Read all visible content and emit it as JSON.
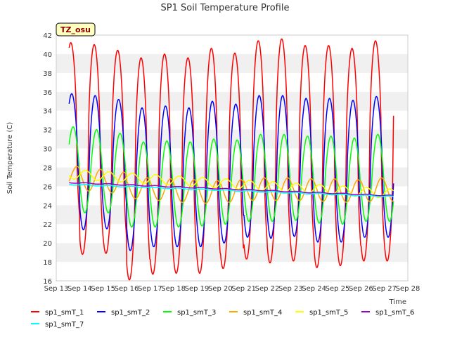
{
  "chart_data": {
    "type": "line",
    "title": "SP1 Soil Temperature Profile",
    "xlabel": "Time",
    "ylabel": "Soil Temperature (C)",
    "badge": "TZ_osu",
    "xlim": [
      13,
      28
    ],
    "ylim": [
      16,
      42
    ],
    "x_ticks": [
      13,
      14,
      15,
      16,
      17,
      18,
      19,
      20,
      21,
      22,
      23,
      24,
      25,
      26,
      27,
      28
    ],
    "x_tick_labels": [
      "Sep 13",
      "Sep 14",
      "Sep 15",
      "Sep 16",
      "Sep 17",
      "Sep 18",
      "Sep 19",
      "Sep 20",
      "Sep 21",
      "Sep 22",
      "Sep 23",
      "Sep 24",
      "Sep 25",
      "Sep 26",
      "Sep 27",
      "Sep 28"
    ],
    "y_ticks": [
      16,
      18,
      20,
      22,
      24,
      26,
      28,
      30,
      32,
      34,
      36,
      38,
      40,
      42
    ],
    "y_tick_labels": [
      "16",
      "18",
      "20",
      "22",
      "24",
      "26",
      "28",
      "30",
      "32",
      "34",
      "36",
      "38",
      "40",
      "42"
    ],
    "grid": "horizontal bands",
    "legend_position": "bottom",
    "day_extrema": {
      "sp1_smT_1": {
        "max": [
          41.2,
          41.0,
          40.4,
          39.6,
          40.0,
          39.6,
          40.6,
          40.1,
          41.4,
          41.6,
          40.9,
          40.9,
          40.6,
          41.4
        ],
        "min": [
          21.2,
          18.8,
          18.9,
          16.1,
          16.7,
          16.8,
          16.8,
          17.3,
          18.3,
          17.9,
          18.1,
          17.4,
          17.6,
          18.1
        ]
      },
      "sp1_smT_2": {
        "max": [
          35.8,
          35.6,
          35.2,
          34.3,
          34.5,
          34.3,
          35.0,
          34.7,
          35.6,
          35.6,
          35.3,
          35.3,
          35.1,
          35.5
        ],
        "min": [
          23.0,
          21.4,
          21.5,
          19.2,
          19.6,
          19.6,
          19.6,
          20.0,
          20.6,
          20.5,
          20.7,
          20.1,
          20.1,
          20.6
        ]
      },
      "sp1_smT_3": {
        "max": [
          32.3,
          32.0,
          31.6,
          30.7,
          30.8,
          30.7,
          31.0,
          30.9,
          31.5,
          31.5,
          31.3,
          31.3,
          31.1,
          31.5
        ],
        "min": [
          24.2,
          23.2,
          23.2,
          21.7,
          21.7,
          21.7,
          21.8,
          22.0,
          22.3,
          22.3,
          22.4,
          22.1,
          22.0,
          22.3
        ]
      },
      "sp1_smT_4": {
        "max": [
          28.1,
          27.8,
          27.5,
          26.9,
          26.8,
          26.7,
          26.6,
          26.7,
          26.9,
          26.9,
          26.8,
          26.8,
          26.7,
          26.9
        ],
        "min": [
          26.0,
          25.5,
          25.3,
          24.7,
          24.5,
          24.3,
          24.2,
          24.3,
          24.5,
          24.5,
          24.5,
          24.4,
          24.3,
          24.4
        ]
      },
      "sp1_smT_5": {
        "start": 27.3,
        "end": 25.2,
        "amplitude": 0.5
      },
      "sp1_smT_6": {
        "start": 26.4,
        "end": 25.0,
        "amplitude": 0.05
      },
      "sp1_smT_7": {
        "start": 26.2,
        "end": 24.9,
        "amplitude": 0.05
      }
    },
    "series": [
      {
        "name": "sp1_smT_1",
        "color": "#ff0000"
      },
      {
        "name": "sp1_smT_2",
        "color": "#0000ff"
      },
      {
        "name": "sp1_smT_3",
        "color": "#00ff00"
      },
      {
        "name": "sp1_smT_4",
        "color": "#ffa500"
      },
      {
        "name": "sp1_smT_5",
        "color": "#ffff00"
      },
      {
        "name": "sp1_smT_6",
        "color": "#9900cc"
      },
      {
        "name": "sp1_smT_7",
        "color": "#00ffff"
      }
    ]
  }
}
